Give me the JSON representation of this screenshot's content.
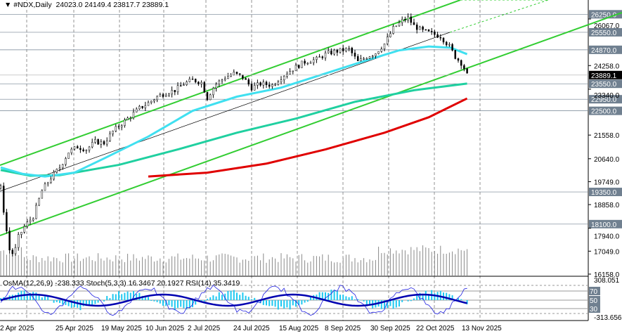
{
  "header": {
    "symbol": "#NDX,Daily",
    "open": "24023.0",
    "high": "24149.4",
    "low": "23817.7",
    "close": "23889.1"
  },
  "indicator_label": "OsMA(12,26,9) -238.333  Stoch(5,3,3) 16.3467 20.1927  RSI(14) 35.3419",
  "chart_data": {
    "type": "candlestick",
    "title": "#NDX,Daily",
    "ylim": [
      16158,
      26067
    ],
    "y_ticks": [
      "26067.0",
      "24258.0",
      "23340.0",
      "21558.0",
      "20640.0",
      "19749.0",
      "18858.0",
      "17940.0",
      "17049.0",
      "16158.0"
    ],
    "level_labels": [
      "26250.0",
      "25550.0",
      "24870.0",
      "23550.0",
      "22950.0",
      "22500.0",
      "19350.0",
      "18100.0"
    ],
    "current_price": "23889.1",
    "x_ticks": [
      "2 Apr 2025",
      "25 Apr 2025",
      "19 May 2025",
      "10 Jun 2025",
      "2 Jul 2025",
      "24 Jul 2025",
      "15 Aug 2025",
      "8 Sep 2025",
      "30 Sep 2025",
      "22 Oct 2025",
      "13 Nov 2025"
    ],
    "approx_closes_by_bar": [
      [
        0,
        19500
      ],
      [
        3,
        18200
      ],
      [
        6,
        17100
      ],
      [
        9,
        16900
      ],
      [
        12,
        17600
      ],
      [
        16,
        18000
      ],
      [
        22,
        18400
      ],
      [
        28,
        19400
      ],
      [
        34,
        19900
      ],
      [
        40,
        20300
      ],
      [
        46,
        20900
      ],
      [
        52,
        21100
      ],
      [
        58,
        21000
      ],
      [
        64,
        21300
      ],
      [
        70,
        21250
      ],
      [
        76,
        21700
      ],
      [
        82,
        22000
      ],
      [
        88,
        22300
      ],
      [
        94,
        22600
      ],
      [
        100,
        22800
      ],
      [
        106,
        23050
      ],
      [
        112,
        23200
      ],
      [
        118,
        23300
      ],
      [
        124,
        23550
      ],
      [
        130,
        23700
      ],
      [
        136,
        23600
      ],
      [
        140,
        23000
      ],
      [
        145,
        23500
      ],
      [
        152,
        23800
      ],
      [
        158,
        23950
      ],
      [
        164,
        23800
      ],
      [
        170,
        23400
      ],
      [
        176,
        23550
      ],
      [
        184,
        23500
      ],
      [
        192,
        23900
      ],
      [
        200,
        24200
      ],
      [
        206,
        24400
      ],
      [
        214,
        24500
      ],
      [
        220,
        24700
      ],
      [
        226,
        24800
      ],
      [
        236,
        24900
      ],
      [
        242,
        24400
      ],
      [
        248,
        24600
      ],
      [
        254,
        24750
      ],
      [
        260,
        25100
      ],
      [
        266,
        25700
      ],
      [
        272,
        26000
      ],
      [
        276,
        26100
      ],
      [
        280,
        25800
      ],
      [
        286,
        25600
      ],
      [
        292,
        25500
      ],
      [
        298,
        25400
      ],
      [
        304,
        25000
      ],
      [
        308,
        24600
      ],
      [
        313,
        24300
      ],
      [
        316,
        23889
      ]
    ],
    "ma_red_200": [
      [
        100,
        19950
      ],
      [
        140,
        20100
      ],
      [
        180,
        20450
      ],
      [
        220,
        21000
      ],
      [
        260,
        21650
      ],
      [
        290,
        22250
      ],
      [
        316,
        22980
      ]
    ],
    "ma_green_100": [
      [
        0,
        20200
      ],
      [
        20,
        19980
      ],
      [
        40,
        20000
      ],
      [
        80,
        20400
      ],
      [
        120,
        21000
      ],
      [
        160,
        21650
      ],
      [
        200,
        22200
      ],
      [
        240,
        22850
      ],
      [
        280,
        23300
      ],
      [
        316,
        23560
      ]
    ],
    "ma_cyan_50": [
      [
        0,
        20300
      ],
      [
        15,
        20050
      ],
      [
        30,
        19950
      ],
      [
        50,
        20100
      ],
      [
        70,
        20650
      ],
      [
        100,
        21500
      ],
      [
        130,
        22500
      ],
      [
        160,
        23050
      ],
      [
        190,
        23400
      ],
      [
        220,
        23950
      ],
      [
        250,
        24500
      ],
      [
        270,
        24850
      ],
      [
        290,
        25000
      ],
      [
        305,
        24950
      ],
      [
        316,
        24700
      ]
    ],
    "oscillator_levels": [
      "80",
      "70",
      "50",
      "30",
      "20"
    ],
    "oscillator_range": [
      "308.051",
      "-313.656"
    ]
  },
  "colors": {
    "channel": "#32cd32",
    "ma_red": "#e00000",
    "ma_cyan": "#40e0f0",
    "ma_green": "#20d0a0",
    "level_box": "#708090"
  }
}
